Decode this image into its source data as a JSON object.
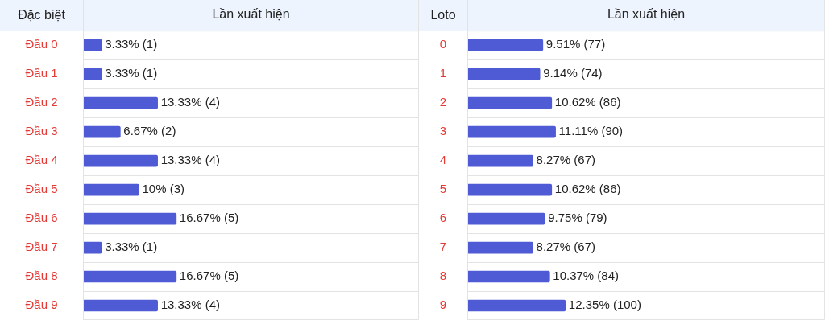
{
  "chart_data": [
    {
      "type": "bar",
      "orientation": "horizontal",
      "xlabel": "Lần xuất hiện",
      "ylabel": "Đặc biệt",
      "categories": [
        "Đầu 0",
        "Đầu 1",
        "Đầu 2",
        "Đầu 3",
        "Đầu 4",
        "Đầu 5",
        "Đầu 6",
        "Đầu 7",
        "Đầu 8",
        "Đầu 9"
      ],
      "values": [
        3.33,
        3.33,
        13.33,
        6.67,
        13.33,
        10,
        16.67,
        3.33,
        16.67,
        13.33
      ],
      "value_labels": [
        "3.33% (1)",
        "3.33% (1)",
        "13.33% (4)",
        "6.67% (2)",
        "13.33% (4)",
        "10% (3)",
        "16.67% (5)",
        "3.33% (1)",
        "16.67% (5)",
        "13.33% (4)"
      ],
      "color": "#4f5bd5",
      "tick_labels": "y",
      "grid": "y",
      "legend": false
    },
    {
      "type": "bar",
      "orientation": "horizontal",
      "xlabel": "Lần xuất hiện",
      "ylabel": "Loto",
      "categories": [
        "0",
        "1",
        "2",
        "3",
        "4",
        "5",
        "6",
        "7",
        "8",
        "9"
      ],
      "values": [
        9.51,
        9.14,
        10.62,
        11.11,
        8.27,
        10.62,
        9.75,
        8.27,
        10.37,
        12.35
      ],
      "value_labels": [
        "9.51% (77)",
        "9.14% (74)",
        "10.62% (86)",
        "11.11% (90)",
        "8.27% (67)",
        "10.62% (86)",
        "9.75% (79)",
        "8.27% (67)",
        "10.37% (84)",
        "12.35% (100)"
      ],
      "color": "#4f5bd5",
      "tick_labels": "y",
      "grid": "y",
      "legend": false
    }
  ]
}
